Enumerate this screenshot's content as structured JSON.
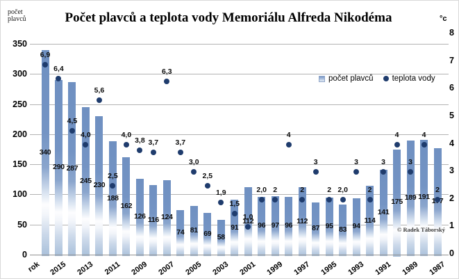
{
  "title": "Počet plavců a teplota vody Memoriálu Alfreda Nikodéma",
  "left_axis_corner_label": {
    "line1": "počet",
    "line2": "plavců"
  },
  "right_axis_unit": "°c",
  "legend": {
    "items": [
      {
        "label": "počet plavců",
        "swatch": "bar-square"
      },
      {
        "label": "teplota vody",
        "swatch": "dot-circle"
      }
    ]
  },
  "credit": "© Radek Táborský",
  "colors": {
    "bar_top": "#6f90c1",
    "bar_middle_white": "#fdfdfe",
    "bar_bottom": "#a9c0da",
    "temperature_dot": "#1f3c6d",
    "gridline": "#b3b3b3"
  },
  "chart_data": {
    "type": "bar+scatter",
    "n_bars": 30,
    "x_tick_labels": [
      {
        "index": -1,
        "text": "rok"
      },
      {
        "index": 1,
        "text": "2015"
      },
      {
        "index": 3,
        "text": "2013"
      },
      {
        "index": 5,
        "text": "2011"
      },
      {
        "index": 7,
        "text": "2009"
      },
      {
        "index": 9,
        "text": "2007"
      },
      {
        "index": 11,
        "text": "2005"
      },
      {
        "index": 13,
        "text": "2003"
      },
      {
        "index": 15,
        "text": "2001"
      },
      {
        "index": 17,
        "text": "1999"
      },
      {
        "index": 19,
        "text": "1997"
      },
      {
        "index": 21,
        "text": "1995"
      },
      {
        "index": 23,
        "text": "1993"
      },
      {
        "index": 25,
        "text": "1991"
      },
      {
        "index": 27,
        "text": "1989"
      },
      {
        "index": 29,
        "text": "1987"
      }
    ],
    "series": [
      {
        "name": "počet plavců",
        "type": "bar",
        "values": [
          340,
          290,
          287,
          245,
          230,
          188,
          162,
          126,
          116,
          124,
          74,
          81,
          69,
          58,
          91,
          112,
          96,
          97,
          96,
          112,
          87,
          95,
          83,
          94,
          114,
          141,
          175,
          189,
          191,
          177
        ],
        "labels": [
          "340",
          "290",
          "287",
          "245",
          "230",
          "188",
          "162",
          "126",
          "116",
          "124",
          "74",
          "81",
          "69",
          "58",
          "91",
          "112",
          "96",
          "97",
          "96",
          "112",
          "87",
          "95",
          "83",
          "94",
          "114",
          "141",
          "175",
          "189",
          "191",
          "177"
        ]
      },
      {
        "name": "teplota vody",
        "type": "scatter",
        "values": [
          6.9,
          6.4,
          4.5,
          4.0,
          5.6,
          2.5,
          4.0,
          3.8,
          3.7,
          6.3,
          3.7,
          3.0,
          2.5,
          1.9,
          1.5,
          1.0,
          2.0,
          2,
          4,
          2,
          3,
          2,
          2.0,
          3,
          2,
          3,
          4,
          3,
          4,
          2
        ],
        "labels": [
          "6,9",
          "6,4",
          "4,5",
          "4,0",
          "5,6",
          "2,5",
          "4,0",
          "3,8",
          "3,7",
          "6,3",
          "3,7",
          "3,0",
          "2,5",
          "1,9",
          "1,5",
          "1,0",
          "2,0",
          "2",
          "4",
          "2",
          "3",
          "2",
          "2,0",
          "3",
          "2",
          "3",
          "4",
          "3",
          "4",
          "2"
        ]
      }
    ],
    "left_axis": {
      "ticks": [
        0,
        50,
        100,
        150,
        200,
        250,
        300,
        350
      ],
      "range": [
        0,
        350
      ]
    },
    "right_axis": {
      "ticks": [
        0,
        1,
        2,
        3,
        4,
        5,
        6,
        7,
        8
      ],
      "range": [
        0,
        8
      ]
    },
    "grid": "horizontal",
    "legend_position": "inside-top-right"
  }
}
